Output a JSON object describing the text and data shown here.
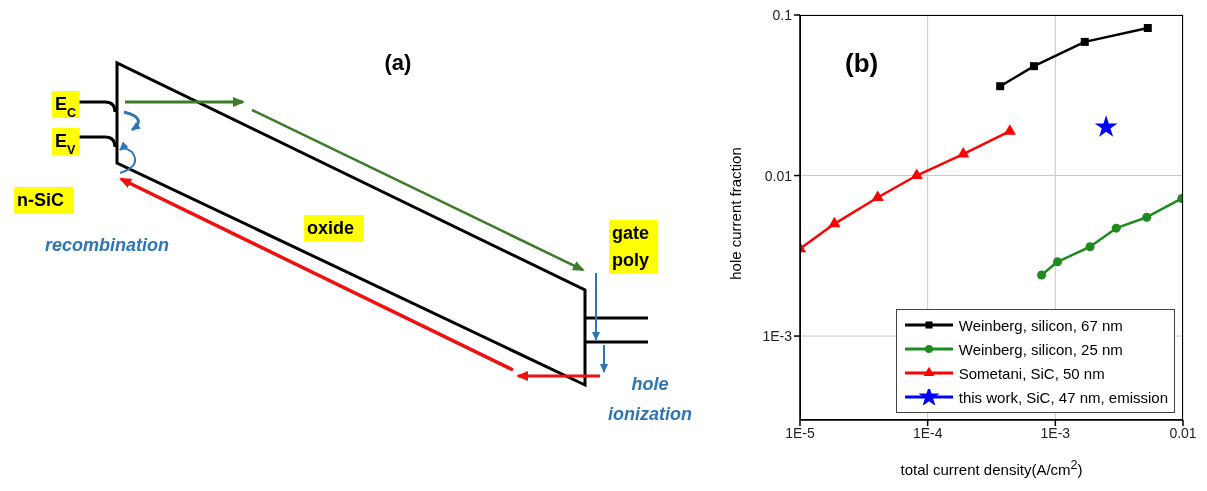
{
  "chart_data": [
    {
      "type": "other",
      "title": "(a)",
      "annotations": [
        "E$_{C}$",
        "E$_{V}$",
        "n-SiC",
        "recombination",
        "oxide",
        "gate poly",
        "hole ionization"
      ]
    },
    {
      "type": "line",
      "title": "(b)",
      "xlabel": "total current density(A/cm$^{2}$)",
      "ylabel": "hole current fraction",
      "log": "xy",
      "xlim": [
        1e-05,
        0.01
      ],
      "xticks": [
        {
          "value": 1e-05,
          "label": "1E-5"
        },
        {
          "value": 0.0001,
          "label": "1E-4"
        },
        {
          "value": 0.001,
          "label": "1E-3"
        },
        0.01
      ],
      "ylim": [
        0.0003,
        0.1
      ],
      "yticks": [
        {
          "value": 0.001,
          "label": "1E-3"
        },
        0.01,
        0.1
      ],
      "grid": true,
      "legend": "bottom right",
      "series": [
        {
          "name": "Weinberg, silicon, 67 nm",
          "color": "#000000",
          "marker": "square",
          "x": [
            0.00037,
            0.00068,
            0.0017,
            0.0053
          ],
          "values": [
            0.036,
            0.048,
            0.068,
            0.083
          ]
        },
        {
          "name": "Weinberg, silicon, 25 nm",
          "color": "#1f8a1f",
          "marker": "circle",
          "x": [
            0.00078,
            0.00104,
            0.00187,
            0.003,
            0.0052,
            0.0098
          ],
          "values": [
            0.0024,
            0.0029,
            0.0036,
            0.0047,
            0.0055,
            0.0072
          ]
        },
        {
          "name": "Sometani, SiC, 50 nm",
          "color": "#ff0000",
          "marker": "triangle",
          "x": [
            1e-05,
            1.86e-05,
            4.06e-05,
            8.2e-05,
            0.00019,
            0.00044
          ],
          "values": [
            0.0035,
            0.005,
            0.0073,
            0.01,
            0.0136,
            0.0189
          ]
        },
        {
          "name": "this work, SiC, 47 nm, emission",
          "color": "#0000ff",
          "type": "scatter",
          "marker": "star",
          "x": [
            0.0025
          ],
          "values": [
            0.02
          ]
        }
      ]
    }
  ]
}
